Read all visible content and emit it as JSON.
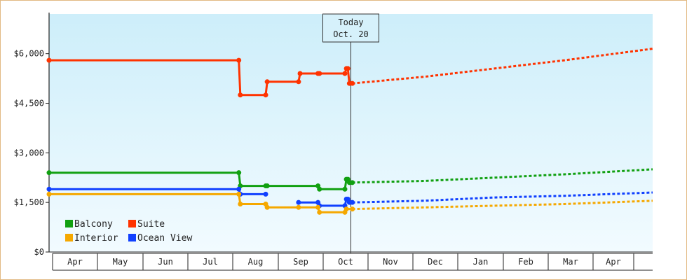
{
  "chart_data": {
    "type": "line",
    "title": "",
    "xlabel": "",
    "ylabel": "",
    "ylim": [
      0,
      7200
    ],
    "y_ticks": [
      {
        "value": 0,
        "label": "$0"
      },
      {
        "value": 1500,
        "label": "$1,500"
      },
      {
        "value": 3000,
        "label": "$3,000"
      },
      {
        "value": 4500,
        "label": "$4,500"
      },
      {
        "value": 6000,
        "label": "$6,000"
      }
    ],
    "months": [
      "Apr",
      "May",
      "Jun",
      "Jul",
      "Aug",
      "Sep",
      "Oct",
      "Nov",
      "Dec",
      "Jan",
      "Feb",
      "Mar",
      "Apr"
    ],
    "x_range": [
      "Apr 1",
      "May 10 (next year)"
    ],
    "today": {
      "line1": "Today",
      "line2": "Oct. 20",
      "x_day": 202
    },
    "x_unit": "days since Apr 1",
    "legend": {
      "position": "bottom-left",
      "columns": 2
    },
    "series": [
      {
        "name": "Suite",
        "color": "#ff3300",
        "history": [
          [
            0,
            5800
          ],
          [
            127,
            5800
          ],
          [
            128,
            4750
          ],
          [
            145,
            4750
          ],
          [
            146,
            5150
          ],
          [
            167,
            5150
          ],
          [
            168,
            5400
          ],
          [
            180,
            5400
          ],
          [
            181,
            5400
          ],
          [
            198,
            5400
          ],
          [
            199,
            5550
          ],
          [
            200,
            5550
          ],
          [
            201,
            5100
          ],
          [
            203,
            5100
          ]
        ],
        "projection": [
          [
            203,
            5100
          ],
          [
            251,
            5300
          ],
          [
            298,
            5550
          ],
          [
            345,
            5800
          ],
          [
            404,
            6150
          ]
        ]
      },
      {
        "name": "Balcony",
        "color": "#11a011",
        "history": [
          [
            0,
            2400
          ],
          [
            127,
            2400
          ],
          [
            128,
            2000
          ],
          [
            145,
            2000
          ],
          [
            146,
            2000
          ],
          [
            180,
            2000
          ],
          [
            181,
            1900
          ],
          [
            198,
            1900
          ],
          [
            199,
            2200
          ],
          [
            200,
            2200
          ],
          [
            201,
            2100
          ],
          [
            203,
            2100
          ]
        ],
        "projection": [
          [
            203,
            2100
          ],
          [
            251,
            2150
          ],
          [
            298,
            2250
          ],
          [
            345,
            2350
          ],
          [
            404,
            2500
          ]
        ]
      },
      {
        "name": "Ocean View",
        "color": "#1040ff",
        "history": [
          [
            0,
            1900
          ],
          [
            127,
            1900
          ],
          [
            128,
            1750
          ],
          [
            145,
            1750
          ]
        ],
        "history2": [
          [
            167,
            1500
          ],
          [
            180,
            1500
          ],
          [
            181,
            1400
          ],
          [
            198,
            1400
          ],
          [
            199,
            1600
          ],
          [
            200,
            1600
          ],
          [
            201,
            1500
          ],
          [
            203,
            1500
          ]
        ],
        "projection": [
          [
            203,
            1500
          ],
          [
            251,
            1550
          ],
          [
            298,
            1650
          ],
          [
            345,
            1700
          ],
          [
            404,
            1800
          ]
        ]
      },
      {
        "name": "Interior",
        "color": "#f5a800",
        "history": [
          [
            0,
            1750
          ],
          [
            127,
            1750
          ],
          [
            128,
            1450
          ],
          [
            145,
            1450
          ],
          [
            146,
            1350
          ],
          [
            167,
            1350
          ],
          [
            180,
            1350
          ],
          [
            181,
            1200
          ],
          [
            198,
            1200
          ],
          [
            199,
            1300
          ],
          [
            203,
            1300
          ]
        ],
        "projection": [
          [
            203,
            1300
          ],
          [
            251,
            1350
          ],
          [
            298,
            1400
          ],
          [
            345,
            1450
          ],
          [
            404,
            1550
          ]
        ]
      }
    ],
    "legend_order": [
      "Balcony",
      "Suite",
      "Interior",
      "Ocean View"
    ]
  }
}
